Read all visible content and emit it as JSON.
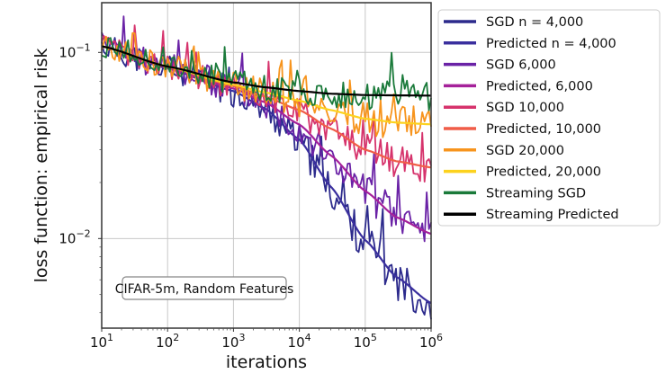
{
  "chart_data": {
    "type": "line",
    "title": "",
    "xlabel": "iterations",
    "ylabel": "loss function: empirical risk",
    "xscale": "log",
    "yscale": "log",
    "xlim": [
      10,
      1000000
    ],
    "ylim": [
      0.0033,
      0.185
    ],
    "grid": true,
    "x_ticks": [
      {
        "value": 10,
        "base": "10",
        "exp": "1"
      },
      {
        "value": 100,
        "base": "10",
        "exp": "2"
      },
      {
        "value": 1000,
        "base": "10",
        "exp": "3"
      },
      {
        "value": 10000,
        "base": "10",
        "exp": "4"
      },
      {
        "value": 100000,
        "base": "10",
        "exp": "5"
      },
      {
        "value": 1000000,
        "base": "10",
        "exp": "6"
      }
    ],
    "y_ticks": [
      {
        "value": 0.1,
        "base": "10",
        "exp": "−1"
      },
      {
        "value": 0.01,
        "base": "10",
        "exp": "−2"
      }
    ],
    "annotation": "CIFAR-5m, Random Features",
    "legend_position": "outside-top-right",
    "series": [
      {
        "name": "SGD n = 4,000",
        "color": "#2c2a8c",
        "kind": "sgd",
        "noise": 0.07,
        "seed": 11,
        "x": [
          10,
          100,
          1000,
          3000,
          10000,
          30000,
          100000,
          300000,
          1000000
        ],
        "y": [
          0.108,
          0.082,
          0.062,
          0.05,
          0.033,
          0.018,
          0.0095,
          0.006,
          0.0045
        ]
      },
      {
        "name": "Predicted n = 4,000",
        "color": "#3a2f9e",
        "kind": "pred",
        "x": [
          10,
          100,
          1000,
          3000,
          10000,
          30000,
          100000,
          300000,
          1000000
        ],
        "y": [
          0.108,
          0.082,
          0.062,
          0.05,
          0.034,
          0.019,
          0.0098,
          0.0062,
          0.0045
        ]
      },
      {
        "name": "SGD 6,000",
        "color": "#6a22a6",
        "kind": "sgd",
        "noise": 0.07,
        "seed": 23,
        "x": [
          10,
          100,
          1000,
          3000,
          10000,
          30000,
          100000,
          300000,
          1000000
        ],
        "y": [
          0.108,
          0.083,
          0.064,
          0.054,
          0.04,
          0.027,
          0.018,
          0.013,
          0.0106
        ]
      },
      {
        "name": "Predicted, 6,000",
        "color": "#a5219a",
        "kind": "pred",
        "x": [
          10,
          100,
          1000,
          3000,
          10000,
          30000,
          100000,
          300000,
          1000000
        ],
        "y": [
          0.108,
          0.083,
          0.064,
          0.054,
          0.041,
          0.028,
          0.018,
          0.013,
          0.0106
        ]
      },
      {
        "name": "SGD 10,000",
        "color": "#d6336c",
        "kind": "sgd",
        "noise": 0.06,
        "seed": 37,
        "x": [
          10,
          100,
          1000,
          3000,
          10000,
          30000,
          100000,
          300000,
          1000000
        ],
        "y": [
          0.108,
          0.084,
          0.066,
          0.058,
          0.048,
          0.038,
          0.03,
          0.026,
          0.0241
        ]
      },
      {
        "name": "Predicted, 10,000",
        "color": "#f05d48",
        "kind": "pred",
        "x": [
          10,
          100,
          1000,
          3000,
          10000,
          30000,
          100000,
          300000,
          1000000
        ],
        "y": [
          0.108,
          0.084,
          0.066,
          0.058,
          0.049,
          0.039,
          0.03,
          0.026,
          0.0241
        ]
      },
      {
        "name": "SGD 20,000",
        "color": "#f7941d",
        "kind": "sgd",
        "noise": 0.06,
        "seed": 53,
        "x": [
          10,
          100,
          1000,
          3000,
          10000,
          30000,
          100000,
          300000,
          1000000
        ],
        "y": [
          0.108,
          0.084,
          0.067,
          0.061,
          0.054,
          0.048,
          0.044,
          0.042,
          0.0411
        ]
      },
      {
        "name": "Predicted, 20,000",
        "color": "#fcd21e",
        "kind": "pred",
        "x": [
          10,
          100,
          1000,
          3000,
          10000,
          30000,
          100000,
          300000,
          1000000
        ],
        "y": [
          0.108,
          0.084,
          0.067,
          0.061,
          0.055,
          0.049,
          0.044,
          0.042,
          0.0411
        ]
      },
      {
        "name": "Streaming SGD",
        "color": "#1a7a3a",
        "kind": "sgd",
        "noise": 0.055,
        "seed": 71,
        "x": [
          10,
          100,
          1000,
          3000,
          10000,
          30000,
          100000,
          300000,
          1000000
        ],
        "y": [
          0.108,
          0.084,
          0.069,
          0.065,
          0.062,
          0.06,
          0.059,
          0.0588,
          0.0586
        ]
      },
      {
        "name": "Streaming Predicted",
        "color": "#000000",
        "kind": "pred",
        "x": [
          10,
          100,
          1000,
          3000,
          10000,
          30000,
          100000,
          300000,
          1000000
        ],
        "y": [
          0.108,
          0.084,
          0.069,
          0.065,
          0.062,
          0.06,
          0.059,
          0.0588,
          0.0586
        ]
      }
    ]
  }
}
